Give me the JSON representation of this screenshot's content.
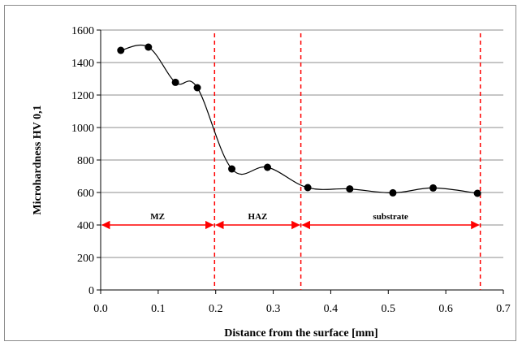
{
  "chart_data": {
    "type": "line",
    "title": "",
    "xlabel": "Distance from the surface [mm]",
    "ylabel": "Microhardness HV 0,1",
    "xlim": [
      0.0,
      0.7
    ],
    "ylim": [
      0,
      1600
    ],
    "x_ticks": [
      "0.0",
      "0.1",
      "0.2",
      "0.3",
      "0.4",
      "0.5",
      "0.6",
      "0.7"
    ],
    "y_ticks": [
      "0",
      "200",
      "400",
      "600",
      "800",
      "1000",
      "1200",
      "1400",
      "1600"
    ],
    "grid": "horizontal",
    "series": [
      {
        "x": [
          0.035,
          0.083,
          0.13,
          0.168,
          0.228,
          0.29,
          0.36,
          0.433,
          0.508,
          0.578,
          0.655
        ],
        "y": [
          1475,
          1495,
          1278,
          1245,
          745,
          755,
          630,
          622,
          598,
          628,
          595
        ],
        "color": "#000000",
        "smooth": true
      }
    ],
    "boundaries": {
      "x": [
        0.198,
        0.348,
        0.66
      ],
      "color": "#ff0000",
      "style": "dashed"
    },
    "zones": [
      {
        "label": "MZ",
        "from": 0.0,
        "to": 0.198
      },
      {
        "label": "HAZ",
        "from": 0.198,
        "to": 0.348
      },
      {
        "label": "substrate",
        "from": 0.348,
        "to": 0.66
      }
    ],
    "zone_arrow_y": 400,
    "zone_color": "#ff0000"
  }
}
